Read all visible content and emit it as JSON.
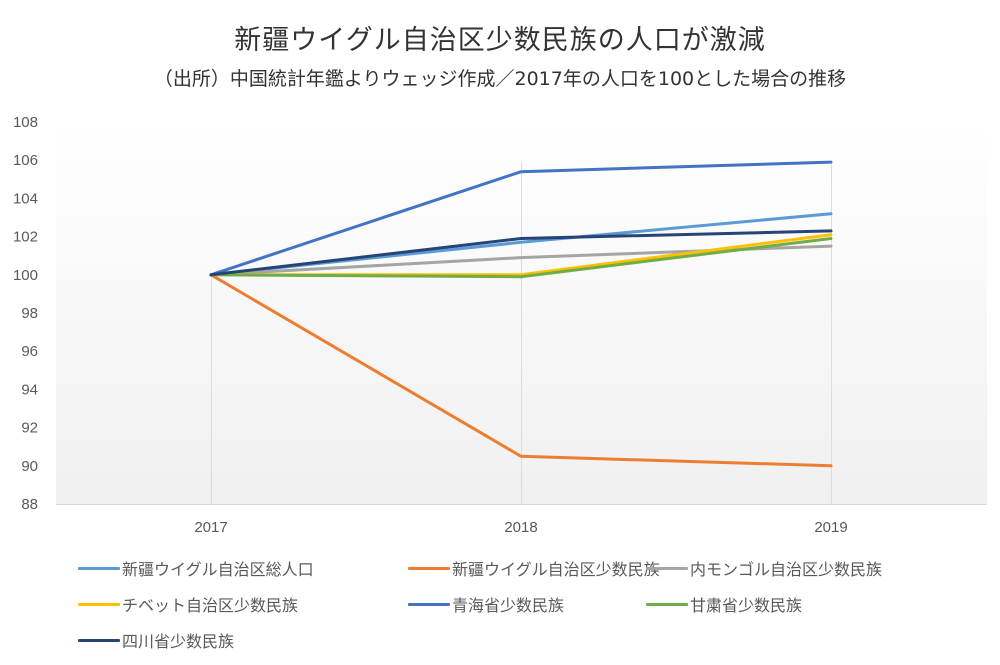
{
  "chart_data": {
    "type": "line",
    "title": "新疆ウイグル自治区少数民族の人口が激減",
    "subtitle": "（出所）中国統計年鑑よりウェッジ作成／2017年の人口を100とした場合の推移",
    "xlabel": "",
    "ylabel": "",
    "categories": [
      "2017",
      "2018",
      "2019"
    ],
    "ylim": [
      88,
      108
    ],
    "yticks": [
      "108",
      "106",
      "104",
      "102",
      "100",
      "98",
      "96",
      "94",
      "92",
      "90",
      "88"
    ],
    "grid": "vertical category lines only",
    "legend_position": "bottom",
    "series": [
      {
        "name": "新疆ウイグル自治区総人口",
        "color": "#5b9bd5",
        "values": [
          100,
          101.7,
          103.2
        ]
      },
      {
        "name": "新疆ウイグル自治区少数民族",
        "color": "#ed7d31",
        "values": [
          100,
          90.5,
          90.0
        ]
      },
      {
        "name": "内モンゴル自治区少数民族",
        "color": "#a5a5a5",
        "values": [
          100,
          100.9,
          101.5
        ]
      },
      {
        "name": "チベット自治区少数民族",
        "color": "#ffc000",
        "values": [
          100,
          100.0,
          102.1
        ]
      },
      {
        "name": "青海省少数民族",
        "color": "#4472c4",
        "values": [
          100,
          105.4,
          105.9
        ]
      },
      {
        "name": "甘粛省少数民族",
        "color": "#70ad47",
        "values": [
          100,
          99.9,
          101.9
        ]
      },
      {
        "name": "四川省少数民族",
        "color": "#264478",
        "values": [
          100,
          101.9,
          102.3
        ]
      }
    ]
  }
}
